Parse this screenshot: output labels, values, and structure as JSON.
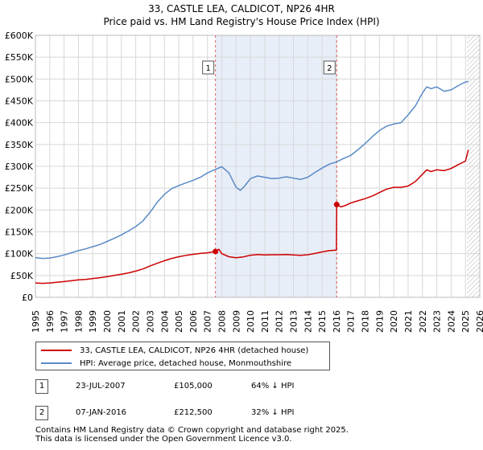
{
  "chart_data": {
    "type": "line",
    "title_line1": "33, CASTLE LEA, CALDICOT, NP26 4HR",
    "title_line2": "Price paid vs. HM Land Registry's House Price Index (HPI)",
    "xlim": [
      1995,
      2026
    ],
    "ylim": [
      0,
      600000
    ],
    "x_ticks": [
      "1995",
      "1996",
      "1997",
      "1998",
      "1999",
      "2000",
      "2001",
      "2002",
      "2003",
      "2004",
      "2005",
      "2006",
      "2007",
      "2008",
      "2009",
      "2010",
      "2011",
      "2012",
      "2013",
      "2014",
      "2015",
      "2016",
      "2017",
      "2018",
      "2019",
      "2020",
      "2021",
      "2022",
      "2023",
      "2024",
      "2025",
      "2026"
    ],
    "y_ticks": [
      {
        "value": 0,
        "label": "£0"
      },
      {
        "value": 50000,
        "label": "£50K"
      },
      {
        "value": 100000,
        "label": "£100K"
      },
      {
        "value": 150000,
        "label": "£150K"
      },
      {
        "value": 200000,
        "label": "£200K"
      },
      {
        "value": 250000,
        "label": "£250K"
      },
      {
        "value": 300000,
        "label": "£300K"
      },
      {
        "value": 350000,
        "label": "£350K"
      },
      {
        "value": 400000,
        "label": "£400K"
      },
      {
        "value": 450000,
        "label": "£450K"
      },
      {
        "value": 500000,
        "label": "£500K"
      },
      {
        "value": 550000,
        "label": "£550K"
      },
      {
        "value": 600000,
        "label": "£600K"
      }
    ],
    "shaded_range": [
      2007.56,
      2016.02
    ],
    "hatched_from": 2025.1,
    "series": [
      {
        "name": "33, CASTLE LEA, CALDICOT, NP26 4HR (detached house)",
        "color": "#cc0000",
        "x": [
          1995.0,
          1995.5,
          1996.0,
          1996.5,
          1997.0,
          1997.5,
          1998.0,
          1998.5,
          1999.0,
          1999.5,
          2000.0,
          2000.5,
          2001.0,
          2001.5,
          2002.0,
          2002.5,
          2003.0,
          2003.5,
          2004.0,
          2004.5,
          2005.0,
          2005.5,
          2006.0,
          2006.5,
          2007.0,
          2007.56,
          2007.8,
          2008.0,
          2008.5,
          2009.0,
          2009.5,
          2010.0,
          2010.5,
          2011.0,
          2011.5,
          2012.0,
          2012.5,
          2013.0,
          2013.5,
          2014.0,
          2014.5,
          2015.0,
          2015.5,
          2016.0,
          2016.02,
          2016.3,
          2016.6,
          2017.0,
          2017.5,
          2018.0,
          2018.5,
          2019.0,
          2019.5,
          2020.0,
          2020.5,
          2021.0,
          2021.5,
          2022.0,
          2022.3,
          2022.6,
          2023.0,
          2023.5,
          2024.0,
          2024.5,
          2025.0,
          2025.2
        ],
        "y": [
          33000,
          32000,
          33000,
          34500,
          36000,
          38000,
          40000,
          41000,
          43000,
          45000,
          47500,
          50000,
          53000,
          56000,
          60000,
          65000,
          72000,
          78000,
          84000,
          89000,
          93000,
          96000,
          98500,
          100500,
          102000,
          105000,
          110000,
          100000,
          93000,
          90500,
          92500,
          96500,
          98000,
          97000,
          97500,
          97500,
          98000,
          97000,
          96000,
          97500,
          100500,
          104000,
          107000,
          108000,
          212500,
          207000,
          210000,
          216000,
          221000,
          226000,
          232000,
          240000,
          248000,
          252000,
          252000,
          255000,
          265000,
          282000,
          292000,
          288000,
          292000,
          290000,
          295000,
          304000,
          312000,
          338000
        ]
      },
      {
        "name": "HPI: Average price, detached house, Monmouthshire",
        "color": "#5a8ac6",
        "x": [
          1995.0,
          1995.5,
          1996.0,
          1996.5,
          1997.0,
          1997.5,
          1998.0,
          1998.5,
          1999.0,
          1999.5,
          2000.0,
          2000.5,
          2001.0,
          2001.5,
          2002.0,
          2002.5,
          2003.0,
          2003.5,
          2004.0,
          2004.5,
          2005.0,
          2005.5,
          2006.0,
          2006.5,
          2007.0,
          2007.56,
          2008.0,
          2008.5,
          2009.0,
          2009.3,
          2009.6,
          2010.0,
          2010.5,
          2011.0,
          2011.5,
          2012.0,
          2012.5,
          2013.0,
          2013.5,
          2014.0,
          2014.5,
          2015.0,
          2015.5,
          2016.0,
          2016.5,
          2017.0,
          2017.5,
          2018.0,
          2018.5,
          2019.0,
          2019.5,
          2020.0,
          2020.5,
          2021.0,
          2021.5,
          2022.0,
          2022.3,
          2022.6,
          2023.0,
          2023.5,
          2024.0,
          2024.5,
          2025.0,
          2025.2
        ],
        "y": [
          91000,
          89000,
          90000,
          93000,
          97000,
          102000,
          107000,
          111000,
          116000,
          121000,
          128000,
          135000,
          143000,
          152000,
          162000,
          175000,
          195000,
          218000,
          236000,
          249000,
          256000,
          262000,
          268000,
          275000,
          285000,
          293000,
          299000,
          285000,
          252000,
          245000,
          255000,
          272000,
          278000,
          275000,
          272000,
          273000,
          276000,
          273000,
          270000,
          275000,
          286000,
          296000,
          305000,
          310000,
          318000,
          325000,
          338000,
          352000,
          368000,
          382000,
          392000,
          397000,
          400000,
          418000,
          438000,
          468000,
          482000,
          478000,
          482000,
          472000,
          475000,
          485000,
          493000,
          495000
        ]
      }
    ],
    "sales": [
      {
        "num": "1",
        "x": 2007.56,
        "y": 105000,
        "date": "23-JUL-2007",
        "price": "£105,000",
        "hpi": "64% ↓ HPI"
      },
      {
        "num": "2",
        "x": 2016.02,
        "y": 212500,
        "date": "07-JAN-2016",
        "price": "£212,500",
        "hpi": "32% ↓ HPI"
      }
    ]
  },
  "footer_line1": "Contains HM Land Registry data © Crown copyright and database right 2025.",
  "footer_line2": "This data is licensed under the Open Government Licence v3.0."
}
